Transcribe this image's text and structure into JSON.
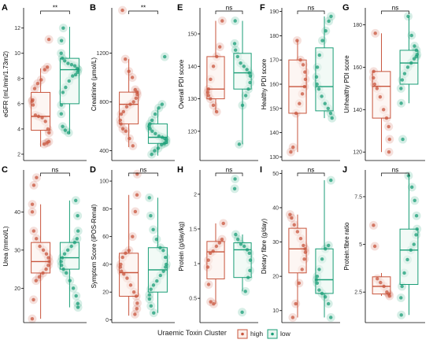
{
  "colors": {
    "high": "#C8553D",
    "low": "#1A9E77",
    "axis": "#000000",
    "point_alpha": 0.75,
    "jitter_alpha": 0.18
  },
  "legend": {
    "title": "Uraemic Toxin Cluster",
    "items": [
      "high",
      "low"
    ]
  },
  "chart_data": [
    {
      "panel": "A",
      "type": "box",
      "ylabel": "eGFR (mL/min/1.73m2)",
      "ylim": [
        1.5,
        13.6
      ],
      "yticks": [
        2,
        4,
        6,
        8,
        10,
        12
      ],
      "sig": "**",
      "groups": [
        {
          "name": "high",
          "box": [
            2.6,
            3.9,
            5.0,
            6.9,
            8.8
          ],
          "points": [
            2.8,
            2.9,
            3.0,
            3.7,
            4.0,
            4.6,
            4.9,
            5.0,
            5.1,
            5.9,
            6.2,
            6.3,
            7.2,
            7.6,
            7.9,
            8.7,
            8.9,
            11.1
          ]
        },
        {
          "name": "low",
          "box": [
            3.6,
            6.0,
            8.7,
            9.6,
            12.1
          ],
          "points": [
            3.7,
            3.9,
            4.2,
            5.2,
            5.9,
            6.9,
            7.3,
            7.8,
            8.2,
            8.3,
            8.5,
            8.7,
            8.8,
            9.0,
            9.1,
            9.2,
            9.4,
            9.6,
            10.0,
            11.0,
            12.0
          ]
        }
      ]
    },
    {
      "panel": "B",
      "type": "box",
      "ylabel": "Creatinine (μmol/L)",
      "ylim": [
        320,
        1570
      ],
      "yticks": [
        400,
        800,
        1200
      ],
      "sig": "**",
      "groups": [
        {
          "name": "high",
          "box": [
            430,
            620,
            780,
            880,
            1150
          ],
          "points": [
            440,
            500,
            560,
            580,
            620,
            650,
            700,
            720,
            760,
            780,
            800,
            830,
            860,
            880,
            900,
            1000,
            1050,
            1150,
            1550
          ]
        },
        {
          "name": "low",
          "box": [
            360,
            460,
            510,
            620,
            750
          ],
          "points": [
            370,
            400,
            420,
            450,
            460,
            470,
            490,
            500,
            510,
            520,
            540,
            560,
            580,
            600,
            620,
            650,
            700,
            750,
            780,
            1170
          ]
        }
      ]
    },
    {
      "panel": "C",
      "type": "box",
      "ylabel": "Urea (mmol/L)",
      "ylim": [
        11,
        51
      ],
      "yticks": [
        20,
        30,
        40
      ],
      "sig": "ns",
      "groups": [
        {
          "name": "high",
          "box": [
            12,
            24,
            27,
            32,
            42
          ],
          "points": [
            12,
            17,
            22,
            23,
            24,
            25,
            26,
            27,
            28,
            29,
            30,
            31,
            33,
            35,
            40,
            42,
            47,
            49
          ]
        },
        {
          "name": "low",
          "box": [
            15,
            25,
            28,
            32,
            43
          ],
          "points": [
            15,
            16,
            18,
            20,
            22,
            24,
            25,
            26,
            27,
            28,
            29,
            30,
            31,
            32,
            33,
            35,
            39,
            43
          ]
        }
      ]
    },
    {
      "panel": "D",
      "type": "box",
      "ylabel": "Symptom Score (iPOS-Renal)",
      "ylim": [
        -2,
        108
      ],
      "yticks": [
        0,
        20,
        40,
        60,
        80,
        100
      ],
      "sig": "ns",
      "groups": [
        {
          "name": "high",
          "box": [
            3,
            17,
            34,
            48,
            90
          ],
          "points": [
            4,
            8,
            12,
            17,
            20,
            25,
            30,
            33,
            35,
            38,
            40,
            45,
            48,
            50,
            60,
            78,
            90,
            105
          ]
        },
        {
          "name": "low",
          "box": [
            5,
            20,
            36,
            52,
            88
          ],
          "points": [
            5,
            10,
            15,
            18,
            22,
            25,
            28,
            32,
            35,
            38,
            40,
            45,
            50,
            52,
            58,
            65,
            75,
            88
          ]
        }
      ]
    },
    {
      "panel": "E",
      "type": "box",
      "ylabel": "Overall PDI score",
      "ylim": [
        111,
        158
      ],
      "yticks": [
        120,
        130,
        140,
        150
      ],
      "sig": "ns",
      "groups": [
        {
          "name": "high",
          "box": [
            126,
            130,
            133,
            143,
            154
          ],
          "points": [
            126,
            128,
            130,
            131,
            132,
            133,
            136,
            140,
            143,
            146,
            154
          ]
        },
        {
          "name": "low",
          "box": [
            116,
            133,
            138,
            144,
            154
          ],
          "points": [
            116,
            128,
            131,
            133,
            135,
            137,
            138,
            139,
            140,
            141,
            143,
            145,
            147,
            154
          ]
        }
      ]
    },
    {
      "panel": "F",
      "type": "box",
      "ylabel": "Healthy PDI score",
      "ylim": [
        128.5,
        191.5
      ],
      "yticks": [
        130,
        140,
        150,
        160,
        170,
        180,
        190
      ],
      "sig": "ns",
      "groups": [
        {
          "name": "high",
          "box": [
            132,
            148,
            159,
            170,
            178
          ],
          "points": [
            132,
            134,
            148,
            152,
            156,
            159,
            162,
            165,
            168,
            170,
            178
          ]
        },
        {
          "name": "low",
          "box": [
            146,
            149,
            159,
            175,
            188
          ],
          "points": [
            146,
            148,
            150,
            152,
            155,
            158,
            160,
            163,
            167,
            172,
            178,
            182,
            186,
            188
          ]
        }
      ]
    },
    {
      "panel": "G",
      "type": "box",
      "ylabel": "Unhealthy PDI score",
      "ylim": [
        116,
        188
      ],
      "yticks": [
        120,
        140,
        160,
        180
      ],
      "sig": "ns",
      "groups": [
        {
          "name": "high",
          "box": [
            120,
            136,
            151,
            158,
            176
          ],
          "points": [
            120,
            126,
            132,
            136,
            140,
            146,
            150,
            152,
            155,
            158,
            176
          ]
        },
        {
          "name": "low",
          "box": [
            143,
            152,
            162,
            168,
            184
          ],
          "points": [
            126,
            143,
            150,
            154,
            157,
            160,
            162,
            164,
            165,
            166,
            168,
            170,
            175,
            184
          ]
        }
      ]
    },
    {
      "panel": "H",
      "type": "box",
      "ylabel": "Protein (g/day/kg)",
      "ylim": [
        0.15,
        2.35
      ],
      "yticks": [
        0.5,
        1.0,
        1.5,
        2.0
      ],
      "sig": "ns",
      "groups": [
        {
          "name": "high",
          "box": [
            0.42,
            0.78,
            1.17,
            1.32,
            1.58
          ],
          "points": [
            0.42,
            0.45,
            0.7,
            0.95,
            1.05,
            1.15,
            1.18,
            1.25,
            1.3,
            1.35,
            1.58
          ]
        },
        {
          "name": "low",
          "box": [
            0.6,
            0.8,
            1.2,
            1.3,
            1.42
          ],
          "points": [
            0.3,
            0.6,
            0.8,
            0.9,
            1.05,
            1.15,
            1.2,
            1.25,
            1.28,
            1.35,
            1.42,
            2.08,
            2.22
          ]
        }
      ]
    },
    {
      "panel": "I",
      "type": "box",
      "ylabel": "Dietary fibre (g/day)",
      "ylim": [
        6.5,
        51
      ],
      "yticks": [
        10,
        20,
        30,
        40,
        50
      ],
      "sig": "ns",
      "groups": [
        {
          "name": "high",
          "box": [
            8,
            21,
            28,
            34,
            38
          ],
          "points": [
            8,
            12,
            18,
            22,
            25,
            27,
            28,
            29,
            31,
            33,
            35,
            37,
            38
          ]
        },
        {
          "name": "low",
          "box": [
            8,
            15,
            19,
            28,
            48
          ],
          "points": [
            8,
            12,
            14,
            15,
            16,
            18,
            19,
            20,
            22,
            25,
            28,
            29,
            48
          ]
        }
      ]
    },
    {
      "panel": "J",
      "type": "box",
      "ylabel": "Protein:fibre ratio",
      "ylim": [
        0.9,
        8.9
      ],
      "yticks": [
        2.5,
        5.0,
        7.5
      ],
      "sig": "ns",
      "groups": [
        {
          "name": "high",
          "box": [
            2.3,
            2.4,
            2.8,
            3.3,
            3.5
          ],
          "points": [
            2.3,
            2.4,
            2.5,
            2.8,
            3.0,
            3.2,
            4.9,
            6.0
          ]
        },
        {
          "name": "low",
          "box": [
            1.3,
            2.9,
            4.7,
            5.8,
            8.6
          ],
          "points": [
            1.3,
            2.2,
            2.8,
            3.5,
            4.2,
            4.7,
            5.0,
            5.5,
            5.8,
            6.5,
            7.3,
            8.0,
            8.6
          ]
        }
      ]
    }
  ]
}
